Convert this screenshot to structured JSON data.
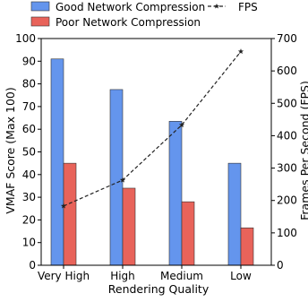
{
  "chart_data": {
    "type": "bar",
    "title": "",
    "categories": [
      "Very High",
      "High",
      "Medium",
      "Low"
    ],
    "series": [
      {
        "name": "Good Network Compression",
        "type": "bar",
        "axis": "left",
        "color": "#6495ED",
        "values": [
          91,
          77.5,
          63.5,
          45
        ]
      },
      {
        "name": "Poor Network Compression",
        "type": "bar",
        "axis": "left",
        "color": "#E8635A",
        "values": [
          45,
          34,
          28,
          16.5
        ]
      },
      {
        "name": "FPS",
        "type": "line",
        "axis": "right",
        "color": "#222222",
        "line_style": "dashed",
        "marker": "star",
        "values": [
          183,
          263,
          433,
          660
        ]
      }
    ],
    "xlabel": "Rendering Quality",
    "ylabel": "VMAF Score (Max 100)",
    "y2label": "Frames Per Second (FPS)",
    "ylim": [
      0,
      100
    ],
    "y2lim": [
      0,
      700
    ],
    "yticks": [
      0,
      10,
      20,
      30,
      40,
      50,
      60,
      70,
      80,
      90,
      100
    ],
    "y2ticks": [
      0,
      100,
      200,
      300,
      400,
      500,
      600,
      700
    ],
    "grid": false,
    "legend": {
      "placement": "top",
      "entries": [
        "Good Network Compression",
        "Poor Network Compression",
        "FPS"
      ]
    }
  }
}
